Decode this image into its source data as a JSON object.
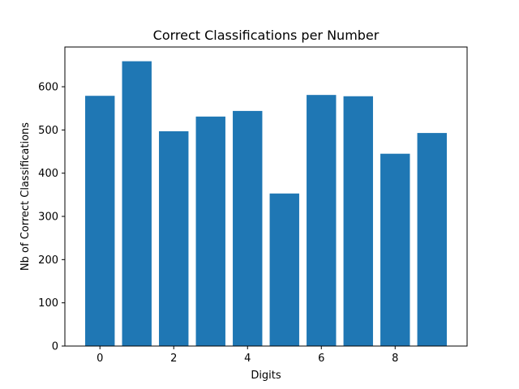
{
  "chart_data": {
    "type": "bar",
    "title": "Correct Classifications per Number",
    "xlabel": "Digits",
    "ylabel": "Nb of Correct Classifications",
    "categories": [
      0,
      1,
      2,
      3,
      4,
      5,
      6,
      7,
      8,
      9
    ],
    "values": [
      579,
      659,
      497,
      531,
      544,
      353,
      581,
      578,
      445,
      493
    ],
    "xlim": [
      -0.95,
      9.95
    ],
    "ylim": [
      0,
      691.95
    ],
    "xticks": [
      "0",
      "2",
      "4",
      "6",
      "8"
    ],
    "yticks": [
      "0",
      "100",
      "200",
      "300",
      "400",
      "500",
      "600"
    ],
    "bar_color": "#1f77b4",
    "grid": false,
    "legend": "none"
  }
}
